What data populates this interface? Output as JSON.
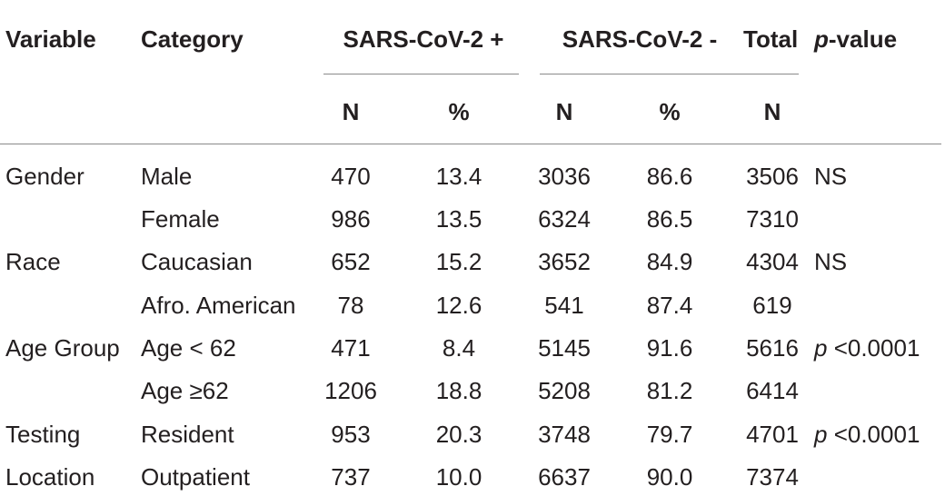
{
  "header": {
    "variable": "Variable",
    "category": "Category",
    "group_pos": "SARS-CoV-2 +",
    "group_neg": "SARS-CoV-2 -",
    "total": "Total",
    "pvalue_italic": "p",
    "pvalue_rest": "-value",
    "n": "N",
    "pct": "%"
  },
  "rows": [
    {
      "variable": "Gender",
      "category": "Male",
      "pos_n": "470",
      "pos_pct": "13.4",
      "neg_n": "3036",
      "neg_pct": "86.6",
      "total": "3506",
      "p_italic": "",
      "p_rest": "NS"
    },
    {
      "variable": "",
      "category": "Female",
      "pos_n": "986",
      "pos_pct": "13.5",
      "neg_n": "6324",
      "neg_pct": "86.5",
      "total": "7310",
      "p_italic": "",
      "p_rest": ""
    },
    {
      "variable": "Race",
      "category": "Caucasian",
      "pos_n": "652",
      "pos_pct": "15.2",
      "neg_n": "3652",
      "neg_pct": "84.9",
      "total": "4304",
      "p_italic": "",
      "p_rest": "NS"
    },
    {
      "variable": "",
      "category": "Afro. American",
      "pos_n": "78",
      "pos_pct": "12.6",
      "neg_n": "541",
      "neg_pct": "87.4",
      "total": "619",
      "p_italic": "",
      "p_rest": ""
    },
    {
      "variable": "Age Group",
      "category": "Age < 62",
      "pos_n": "471",
      "pos_pct": "8.4",
      "neg_n": "5145",
      "neg_pct": "91.6",
      "total": "5616",
      "p_italic": "p",
      "p_rest": " <0.0001"
    },
    {
      "variable": "",
      "category": "Age ≥62",
      "pos_n": "1206",
      "pos_pct": "18.8",
      "neg_n": "5208",
      "neg_pct": "81.2",
      "total": "6414",
      "p_italic": "",
      "p_rest": ""
    },
    {
      "variable": "Testing",
      "category": "Resident",
      "pos_n": "953",
      "pos_pct": "20.3",
      "neg_n": "3748",
      "neg_pct": "79.7",
      "total": "4701",
      "p_italic": "p",
      "p_rest": " <0.0001"
    },
    {
      "variable": "Location",
      "category": "Outpatient",
      "pos_n": "737",
      "pos_pct": "10.0",
      "neg_n": "6637",
      "neg_pct": "90.0",
      "total": "7374",
      "p_italic": "",
      "p_rest": ""
    }
  ]
}
